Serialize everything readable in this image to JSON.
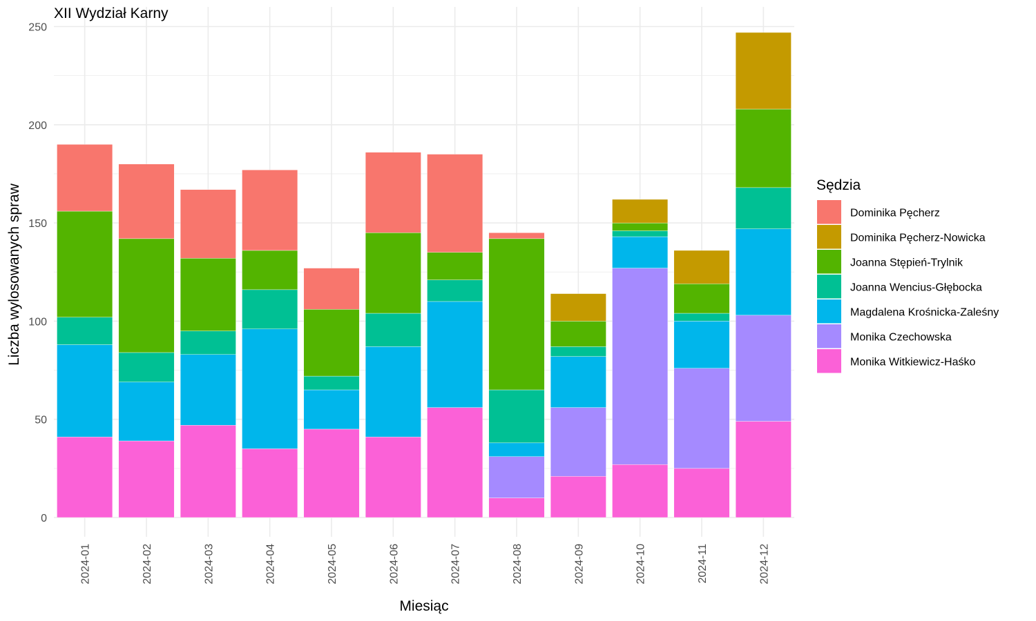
{
  "chart_data": {
    "type": "bar",
    "stacked": true,
    "title": "XII Wydział Karny",
    "xlabel": "Miesiąc",
    "ylabel": "Liczba wylosowanych spraw",
    "ylim": [
      0,
      250
    ],
    "yticks": [
      0,
      50,
      100,
      150,
      200,
      250
    ],
    "grid": true,
    "legend_position": "right",
    "legend_title": "Sędzia",
    "categories": [
      "2024-01",
      "2024-02",
      "2024-03",
      "2024-04",
      "2024-05",
      "2024-06",
      "2024-07",
      "2024-08",
      "2024-09",
      "2024-10",
      "2024-11",
      "2024-12"
    ],
    "series": [
      {
        "name": "Dominika Pęcherz",
        "color": "#F8766D",
        "values": [
          34,
          38,
          35,
          41,
          21,
          41,
          50,
          3,
          0,
          0,
          0,
          0
        ]
      },
      {
        "name": "Dominika Pęcherz-Nowicka",
        "color": "#C49A00",
        "values": [
          0,
          0,
          0,
          0,
          0,
          0,
          0,
          0,
          14,
          12,
          17,
          39
        ]
      },
      {
        "name": "Joanna Stępień-Trylnik",
        "color": "#53B400",
        "values": [
          54,
          58,
          37,
          20,
          34,
          41,
          14,
          77,
          13,
          4,
          15,
          40
        ]
      },
      {
        "name": "Joanna Wencius-Głębocka",
        "color": "#00C094",
        "values": [
          14,
          15,
          12,
          20,
          7,
          17,
          11,
          27,
          5,
          3,
          4,
          21
        ]
      },
      {
        "name": "Magdalena Krośnicka-Zaleśny",
        "color": "#00B6EB",
        "values": [
          47,
          30,
          36,
          61,
          20,
          46,
          54,
          7,
          26,
          16,
          24,
          44
        ]
      },
      {
        "name": "Monika Czechowska",
        "color": "#A58AFF",
        "values": [
          0,
          0,
          0,
          0,
          0,
          0,
          0,
          21,
          35,
          100,
          51,
          54
        ]
      },
      {
        "name": "Monika Witkiewicz-Haśko",
        "color": "#FB61D7",
        "values": [
          41,
          39,
          47,
          35,
          45,
          41,
          56,
          10,
          21,
          27,
          25,
          49
        ]
      }
    ]
  }
}
